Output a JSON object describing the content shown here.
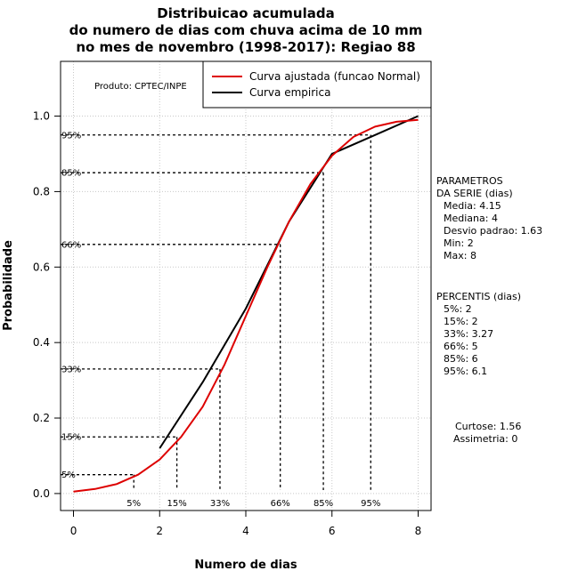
{
  "chart_data": {
    "type": "line",
    "title": [
      "Distribuicao acumulada",
      "do numero de dias com chuva acima de 10 mm",
      "no mes de novembro (1998-2017): Regiao 88"
    ],
    "xlabel": "Numero de dias",
    "ylabel": "Probabilidade",
    "xlim": [
      -0.3,
      8.3
    ],
    "ylim": [
      -0.045,
      1.145
    ],
    "xticks": [
      0,
      2,
      4,
      6,
      8
    ],
    "xtick_labels": [
      "0",
      "2",
      "4",
      "6",
      "8"
    ],
    "yticks": [
      0.0,
      0.2,
      0.4,
      0.6,
      0.8,
      1.0
    ],
    "ytick_labels": [
      "0.0",
      "0.2",
      "0.4",
      "0.6",
      "0.8",
      "1.0"
    ],
    "grid": true,
    "legend_position": "top-right",
    "series": [
      {
        "name": "Curva ajustada (funcao Normal)",
        "color": "#dd0000",
        "x": [
          0,
          0.5,
          1,
          1.5,
          2,
          2.5,
          3,
          3.5,
          4,
          4.5,
          5,
          5.5,
          6,
          6.5,
          7,
          7.5,
          8
        ],
        "y": [
          0.005,
          0.012,
          0.025,
          0.05,
          0.09,
          0.15,
          0.23,
          0.34,
          0.47,
          0.6,
          0.72,
          0.82,
          0.895,
          0.945,
          0.972,
          0.985,
          0.99
        ]
      },
      {
        "name": "Curva empirica",
        "color": "#000000",
        "x": [
          2,
          3,
          4,
          5,
          6,
          7,
          8
        ],
        "y": [
          0.12,
          0.295,
          0.49,
          0.72,
          0.9,
          0.95,
          1.0
        ]
      }
    ],
    "percentile_markers": [
      {
        "label_y": "5%",
        "label_x": "5%",
        "prob": 0.05,
        "x": 1.4
      },
      {
        "label_y": "15%",
        "label_x": "15%",
        "prob": 0.15,
        "x": 2.4
      },
      {
        "label_y": "33%",
        "label_x": "33%",
        "prob": 0.33,
        "x": 3.4
      },
      {
        "label_y": "66%",
        "label_x": "66%",
        "prob": 0.66,
        "x": 4.8
      },
      {
        "label_y": "85%",
        "label_x": "85%",
        "prob": 0.85,
        "x": 5.8
      },
      {
        "label_y": "95%",
        "label_x": "95%",
        "prob": 0.95,
        "x": 6.9
      }
    ],
    "product_label": "Produto: CPTEC/INPE"
  },
  "parameters": {
    "heading": [
      "PARAMETROS",
      "DA SERIE (dias)"
    ],
    "lines": [
      "Media: 4.15",
      "Mediana: 4",
      "Desvio padrao: 1.63",
      "Min: 2",
      "Max: 8"
    ]
  },
  "percentis": {
    "heading": "PERCENTIS (dias)",
    "lines": [
      "5%: 2",
      "15%: 2",
      "33%: 3.27",
      "66%: 5",
      "85%: 6",
      "95%: 6.1"
    ]
  },
  "shape": {
    "lines": [
      "Curtose: 1.56",
      "Assimetria: 0"
    ]
  }
}
